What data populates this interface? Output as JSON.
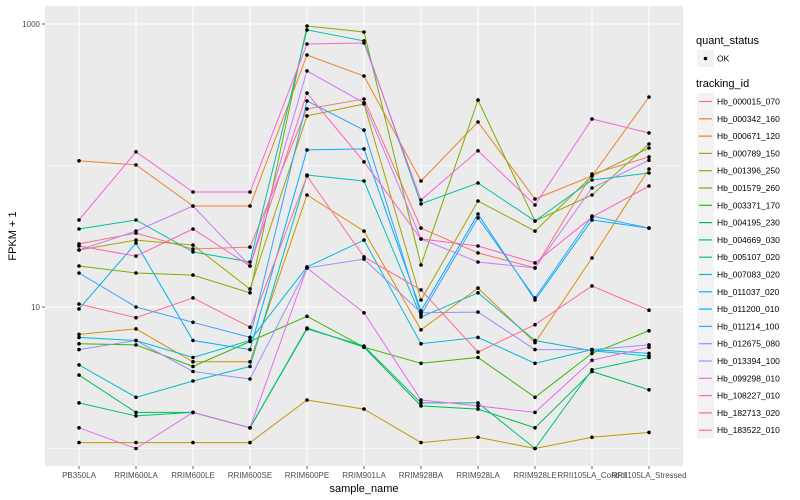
{
  "chart_data": {
    "type": "line",
    "title": "",
    "xlabel": "sample_name",
    "ylabel": "FPKM + 1",
    "yscale": "log10",
    "ylim": [
      1,
      1300
    ],
    "yticks": [
      10,
      1000
    ],
    "ytick_labels": [
      "10",
      "1000"
    ],
    "grid": true,
    "categories": [
      "PB350LA",
      "RRIM600LA",
      "RRIM600LE",
      "RRIM600SE",
      "RRIM600PE",
      "RRIM901LA",
      "RRIM928BA",
      "RRIM928LA",
      "RRIM928LE",
      "RRII105LA_Control",
      "RRII105LA_Stressed"
    ],
    "legend_placement": "right",
    "point_legend": {
      "title": "quant_status",
      "entries": [
        "OK"
      ]
    },
    "line_legend_title": "tracking_id",
    "series": [
      {
        "name": "Hb_000015_070",
        "color": "#F8766D",
        "values": [
          27.9,
          33.3,
          25.7,
          26.5,
          251,
          295,
          36.1,
          24.1,
          18.9,
          87.1,
          115
        ]
      },
      {
        "name": "Hb_000342_160",
        "color": "#EA8331",
        "values": [
          108,
          101,
          51.7,
          51.7,
          604,
          429,
          77.7,
          203,
          58.0,
          84.3,
          305
        ]
      },
      {
        "name": "Hb_000671_120",
        "color": "#D89000",
        "values": [
          6.4,
          7.0,
          4.1,
          4.1,
          61.9,
          34.4,
          6.9,
          13.6,
          5.6,
          22.2,
          94.4
        ]
      },
      {
        "name": "Hb_000789_150",
        "color": "#C09B00",
        "values": [
          1.1,
          1.1,
          1.1,
          1.1,
          2.2,
          1.9,
          1.1,
          1.2,
          1.0,
          1.2,
          1.3
        ]
      },
      {
        "name": "Hb_001396_250",
        "color": "#A3A500",
        "values": [
          25.3,
          29.7,
          27.4,
          13.4,
          224,
          272,
          11.2,
          56.1,
          34.4,
          84.3,
          133
        ]
      },
      {
        "name": "Hb_001579_260",
        "color": "#7CAE00",
        "values": [
          19.5,
          17.4,
          16.8,
          12.6,
          968,
          878,
          19.8,
          290,
          40.5,
          61.9,
          142
        ]
      },
      {
        "name": "Hb_003371_170",
        "color": "#39B600",
        "values": [
          5.5,
          5.4,
          3.8,
          5.7,
          8.6,
          5.2,
          4.0,
          4.4,
          2.3,
          4.7,
          6.8
        ]
      },
      {
        "name": "Hb_004195_230",
        "color": "#00BB4E",
        "values": [
          3.3,
          1.8,
          1.8,
          1.4,
          7.1,
          5.2,
          2.0,
          1.9,
          1.4,
          3.5,
          2.6
        ]
      },
      {
        "name": "Hb_004669_030",
        "color": "#00BF7D",
        "values": [
          2.1,
          1.7,
          1.8,
          1.4,
          7.0,
          5.3,
          2.1,
          2.1,
          1.0,
          3.6,
          4.4
        ]
      },
      {
        "name": "Hb_005107_020",
        "color": "#00C1A3",
        "values": [
          35.6,
          41.2,
          24.5,
          20.8,
          908,
          759,
          53.5,
          75.2,
          40.5,
          79.0,
          88.5
        ]
      },
      {
        "name": "Hb_007083_020",
        "color": "#00BFC4",
        "values": [
          3.9,
          2.3,
          3.0,
          3.8,
          85.7,
          77.7,
          8.5,
          12.6,
          5.8,
          4.9,
          4.5
        ]
      },
      {
        "name": "Hb_011037_020",
        "color": "#00BAE0",
        "values": [
          6.1,
          5.8,
          4.4,
          5.8,
          19.2,
          29.7,
          5.5,
          6.1,
          4.0,
          5.0,
          4.7
        ]
      },
      {
        "name": "Hb_011200_010",
        "color": "#00B0F6",
        "values": [
          9.7,
          28.3,
          5.8,
          5.0,
          129,
          131,
          9.4,
          45.4,
          11.2,
          41.2,
          36.1
        ]
      },
      {
        "name": "Hb_011214_100",
        "color": "#35A2FF",
        "values": [
          17.4,
          10.0,
          7.8,
          6.1,
          286,
          178,
          8.8,
          42.6,
          11.6,
          44.0,
          36.1
        ]
      },
      {
        "name": "Hb_012675_080",
        "color": "#9590FF",
        "values": [
          5.0,
          5.8,
          3.5,
          3.1,
          18.9,
          21.8,
          9.1,
          9.2,
          5.0,
          5.0,
          5.4
        ]
      },
      {
        "name": "Hb_013394_100",
        "color": "#C77CFF",
        "values": [
          25.3,
          34.4,
          51.7,
          19.5,
          466,
          277,
          30.3,
          20.8,
          18.9,
          69.3,
          109
        ]
      },
      {
        "name": "Hb_099298_010",
        "color": "#E76BF3",
        "values": [
          1.4,
          1.0,
          1.8,
          1.4,
          18.9,
          9.1,
          2.2,
          2.0,
          1.8,
          4.2,
          5.2
        ]
      },
      {
        "name": "Hb_108227_010",
        "color": "#FA62DB",
        "values": [
          41.2,
          125,
          65.0,
          65.0,
          722,
          734,
          57.0,
          127,
          52.6,
          213,
          170
        ]
      },
      {
        "name": "Hb_182713_020",
        "color": "#FF62BC",
        "values": [
          27.0,
          22.9,
          35.6,
          19.5,
          325,
          106,
          30.3,
          27.0,
          20.5,
          43.2,
          71.6
        ]
      },
      {
        "name": "Hb_183522_010",
        "color": "#FF6C91",
        "values": [
          10.5,
          8.4,
          11.6,
          7.2,
          84.3,
          22.6,
          13.2,
          4.8,
          7.5,
          14.1,
          9.5
        ]
      }
    ]
  }
}
